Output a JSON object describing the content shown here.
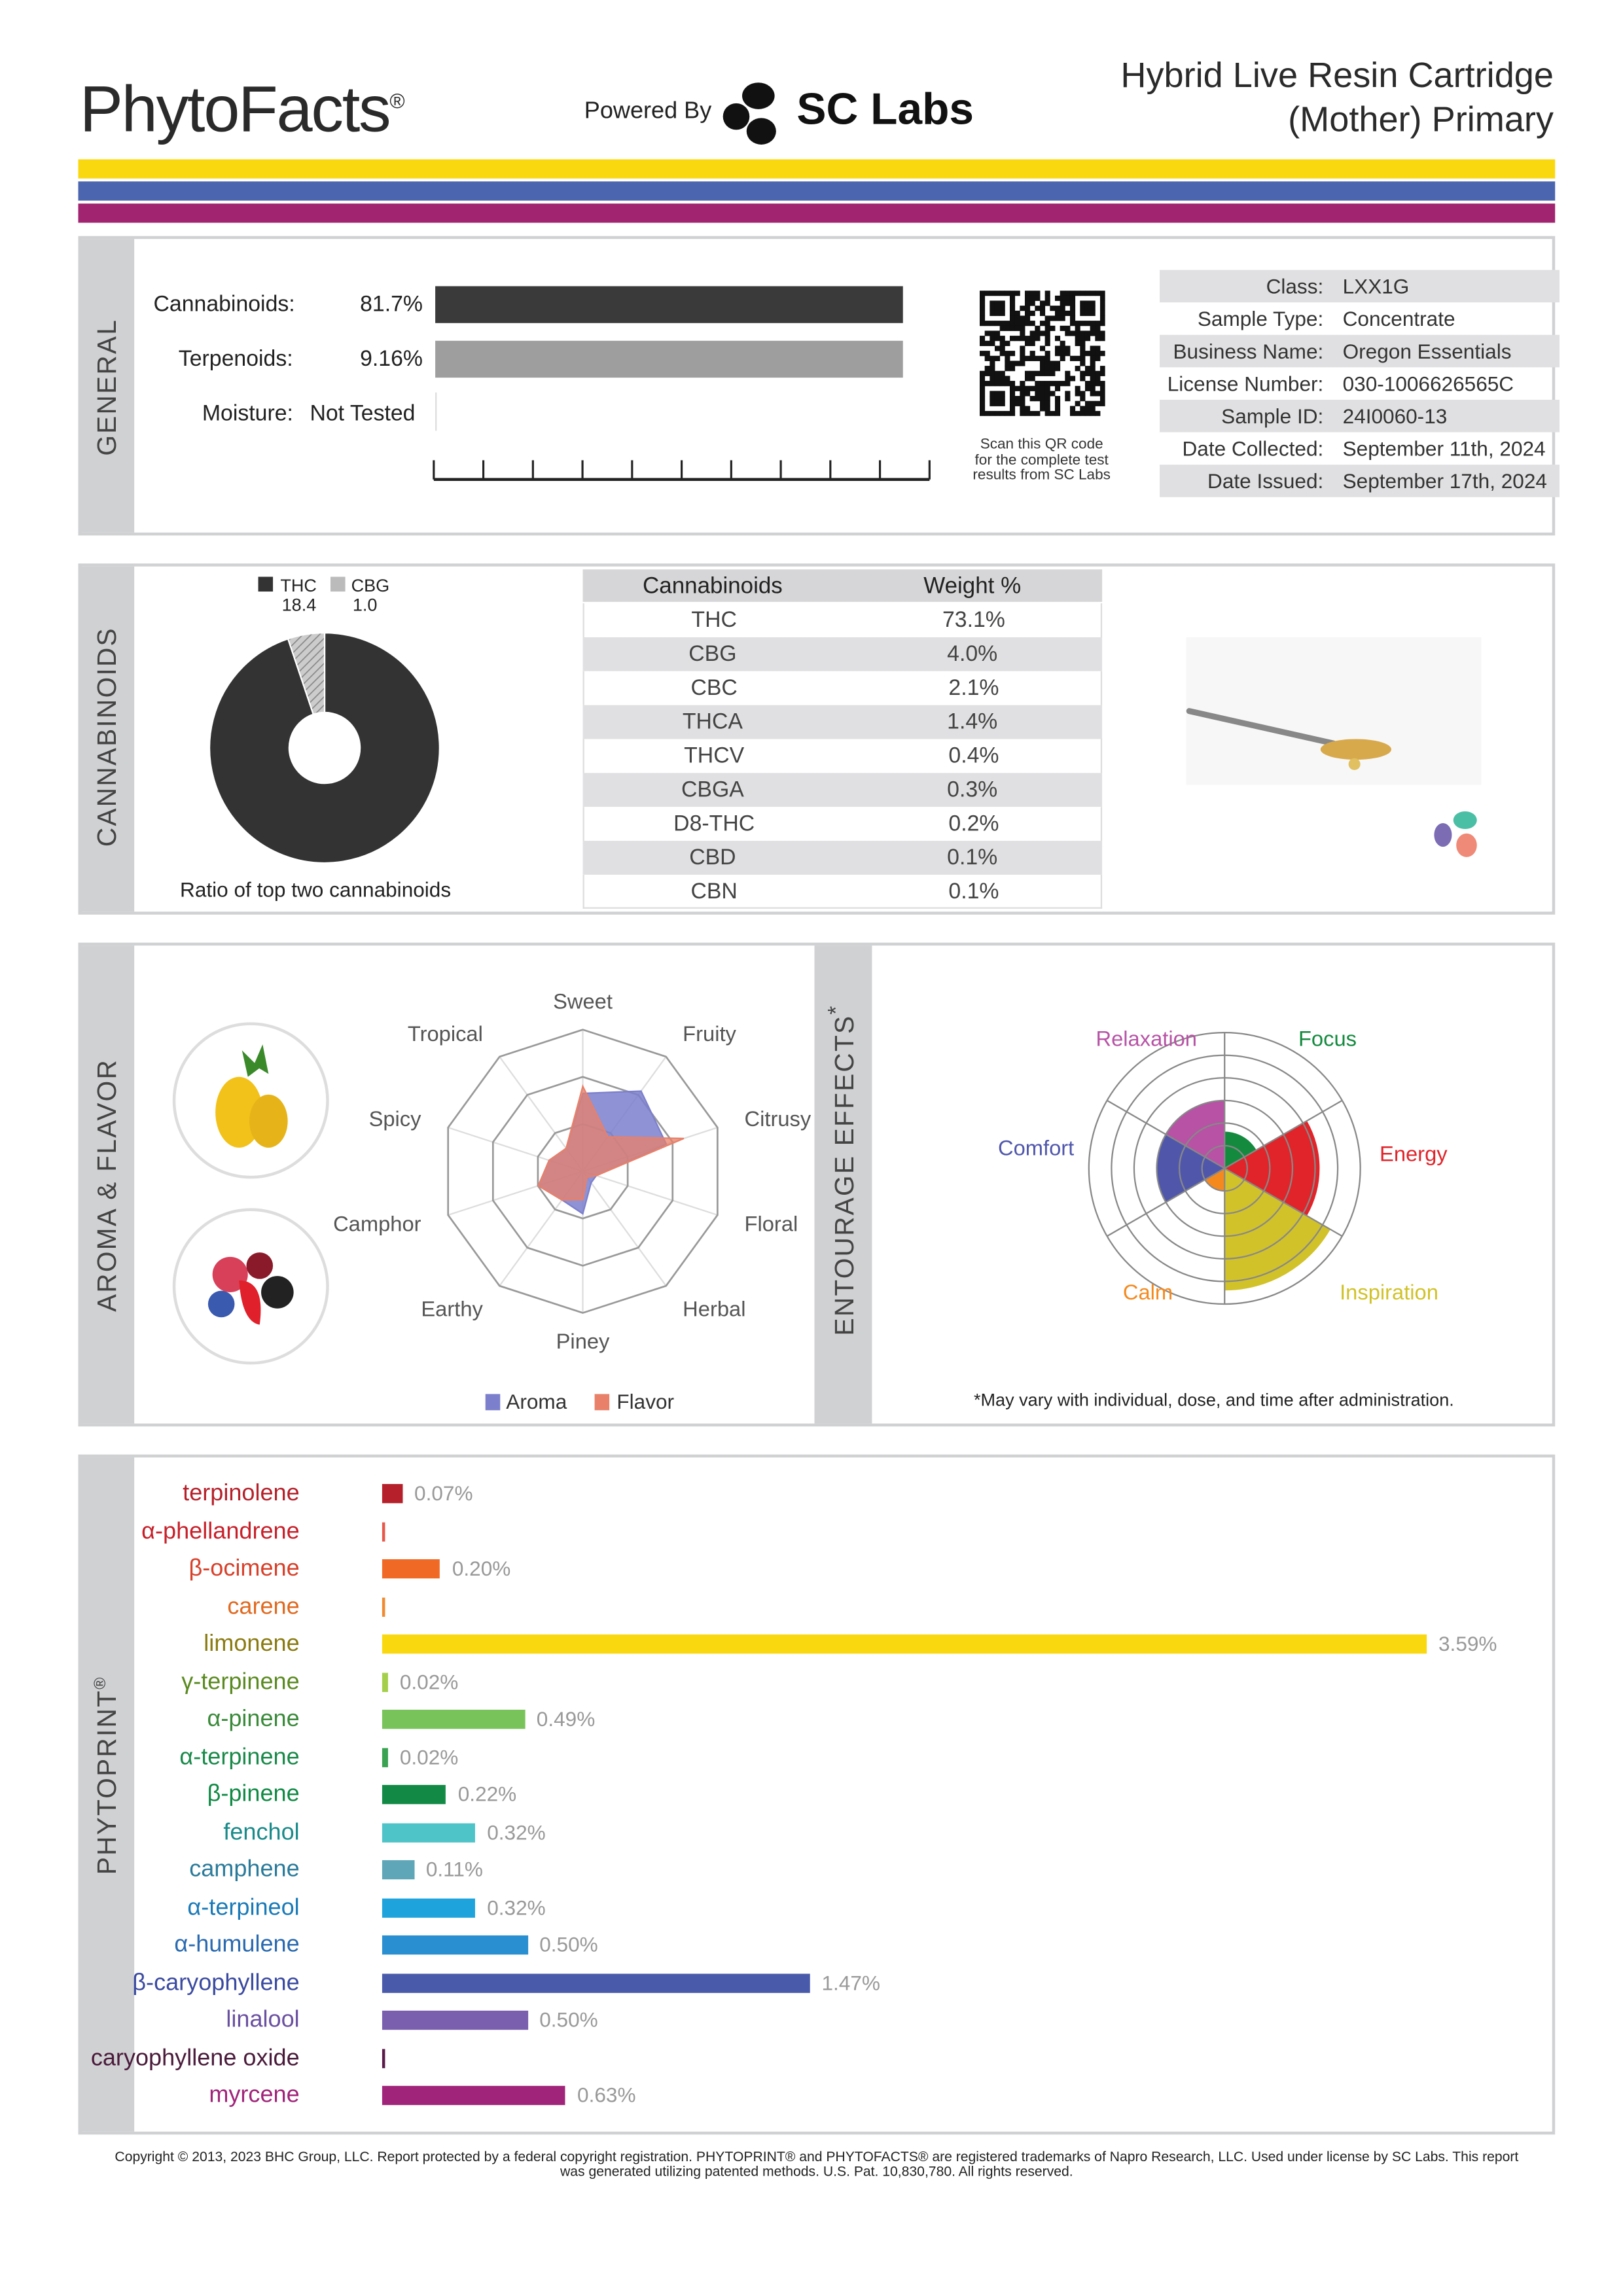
{
  "header": {
    "brand": "PhytoFacts",
    "brand_mark": "®",
    "powered_by": "Powered By",
    "lab_logo": "SC Labs",
    "title_line1": "Hybrid Live Resin Cartridge",
    "title_line2": "(Mother) Primary"
  },
  "stripes": [
    "#fad810",
    "#4b65ae",
    "#a0246f"
  ],
  "general": {
    "section": "GENERAL",
    "cannabinoids_label": "Cannabinoids:",
    "cannabinoids_value": "81.7%",
    "cannabinoids_pct": 81.7,
    "terpenoids_label": "Terpenoids:",
    "terpenoids_value": "9.16%",
    "terpenoids_pct": 9.16,
    "moisture_label": "Moisture:",
    "moisture_value": "Not Tested",
    "qr_caption": [
      "Scan this QR code",
      "for the complete test",
      "results from SC Labs"
    ],
    "info": [
      {
        "k": "Class:",
        "v": "LXX1G"
      },
      {
        "k": "Sample Type:",
        "v": "Concentrate"
      },
      {
        "k": "Business Name:",
        "v": "Oregon Essentials"
      },
      {
        "k": "License Number:",
        "v": "030-1006626565C"
      },
      {
        "k": "Sample ID:",
        "v": "24I0060-13"
      },
      {
        "k": "Date Collected:",
        "v": "September 11th, 2024"
      },
      {
        "k": "Date Issued:",
        "v": "September 17th, 2024"
      }
    ]
  },
  "cannabinoids": {
    "section": "CANNABINOIDS",
    "pie": {
      "type": "pie",
      "legend": [
        {
          "name": "THC",
          "value": "18.4",
          "color": "#333333"
        },
        {
          "name": "CBG",
          "value": "1.0",
          "color": "#bbbbbb"
        }
      ],
      "caption": "Ratio of top two cannabinoids"
    },
    "table": {
      "headers": [
        "Cannabinoids",
        "Weight %"
      ],
      "rows": [
        [
          "THC",
          "73.1%"
        ],
        [
          "CBG",
          "4.0%"
        ],
        [
          "CBC",
          "2.1%"
        ],
        [
          "THCA",
          "1.4%"
        ],
        [
          "THCV",
          "0.4%"
        ],
        [
          "CBGA",
          "0.3%"
        ],
        [
          "D8-THC",
          "0.2%"
        ],
        [
          "CBD",
          "0.1%"
        ],
        [
          "CBN",
          "0.1%"
        ]
      ]
    }
  },
  "aroma": {
    "section": "AROMA & FLAVOR",
    "chart_data": {
      "type": "radar",
      "axes": [
        "Sweet",
        "Fruity",
        "Citrusy",
        "Floral",
        "Herbal",
        "Piney",
        "Earthy",
        "Camphor",
        "Spicy",
        "Tropical"
      ],
      "range": [
        0,
        1
      ],
      "series": [
        {
          "name": "Aroma",
          "color": "#7b7fcc",
          "values": [
            0.55,
            0.7,
            0.62,
            0.1,
            0.1,
            0.3,
            0.25,
            0.33,
            0.25,
            0.2
          ]
        },
        {
          "name": "Flavor",
          "color": "#e8806a",
          "values": [
            0.6,
            0.3,
            0.75,
            0.1,
            0.05,
            0.2,
            0.25,
            0.33,
            0.25,
            0.2
          ]
        }
      ]
    }
  },
  "entourage": {
    "section": "ENTOURAGE EFFECTS",
    "mark": "*",
    "note": "*May vary with individual, dose, and time after administration.",
    "chart_data": {
      "type": "polar-area",
      "range": [
        0,
        1
      ],
      "sectors": [
        {
          "name": "Focus",
          "color": "#138a3e",
          "value": 0.27
        },
        {
          "name": "Energy",
          "color": "#e0242a",
          "value": 0.7
        },
        {
          "name": "Inspiration",
          "color": "#d1c22a",
          "value": 0.9
        },
        {
          "name": "Calm",
          "color": "#f5891e",
          "value": 0.17
        },
        {
          "name": "Comfort",
          "color": "#5057ab",
          "value": 0.5
        },
        {
          "name": "Relaxation",
          "color": "#b752a5",
          "value": 0.5
        }
      ]
    }
  },
  "phytoprint": {
    "section": "PHYTOPRINT",
    "mark": "®",
    "chart_data": {
      "type": "bar",
      "orientation": "horizontal",
      "unit": "%",
      "items": [
        {
          "name": "terpinolene",
          "value": 0.07,
          "label": "0.07%",
          "color": "#b5202a",
          "text": "#b5202a"
        },
        {
          "name": "α-phellandrene",
          "value": null,
          "label": "",
          "color": "#e8584a",
          "text": "#c8202a"
        },
        {
          "name": "β-ocimene",
          "value": 0.2,
          "label": "0.20%",
          "color": "#f06a25",
          "text": "#d8402a"
        },
        {
          "name": "carene",
          "value": null,
          "label": "",
          "color": "#f08a30",
          "text": "#e06a20"
        },
        {
          "name": "limonene",
          "value": 3.59,
          "label": "3.59%",
          "color": "#fad810",
          "text": "#8a7a10"
        },
        {
          "name": "γ-terpinene",
          "value": 0.02,
          "label": "0.02%",
          "color": "#a5cf4a",
          "text": "#5a8a20"
        },
        {
          "name": "α-pinene",
          "value": 0.49,
          "label": "0.49%",
          "color": "#78c35a",
          "text": "#3a8a3a"
        },
        {
          "name": "α-terpinene",
          "value": 0.02,
          "label": "0.02%",
          "color": "#3aa352",
          "text": "#1a8a4a"
        },
        {
          "name": "β-pinene",
          "value": 0.22,
          "label": "0.22%",
          "color": "#128a45",
          "text": "#108a45"
        },
        {
          "name": "fenchol",
          "value": 0.32,
          "label": "0.32%",
          "color": "#4fc4c8",
          "text": "#1a8a8a"
        },
        {
          "name": "camphene",
          "value": 0.11,
          "label": "0.11%",
          "color": "#5ea6b8",
          "text": "#2a7a9a"
        },
        {
          "name": "α-terpineol",
          "value": 0.32,
          "label": "0.32%",
          "color": "#1fa3dc",
          "text": "#1a7ab8"
        },
        {
          "name": "α-humulene",
          "value": 0.5,
          "label": "0.50%",
          "color": "#2a8fd0",
          "text": "#2a6ab0"
        },
        {
          "name": "β-caryophyllene",
          "value": 1.47,
          "label": "1.47%",
          "color": "#4a5aaa",
          "text": "#3a4aa0"
        },
        {
          "name": "linalool",
          "value": 0.5,
          "label": "0.50%",
          "color": "#7a5fae",
          "text": "#6a50a0"
        },
        {
          "name": "caryophyllene oxide",
          "value": null,
          "label": "",
          "color": "#5a1a4a",
          "text": "#4a1a3a"
        },
        {
          "name": "myrcene",
          "value": 0.63,
          "label": "0.63%",
          "color": "#a0247a",
          "text": "#a0247a"
        }
      ]
    }
  },
  "footer": {
    "line1": "Copyright © 2013, 2023 BHC Group, LLC. Report protected by a federal copyright registration. PHYTOPRINT® and PHYTOFACTS® are registered trademarks of Napro Research, LLC. Used under license by SC Labs. This report",
    "line2": "was generated utilizing patented methods. U.S. Pat. 10,830,780. All rights reserved."
  }
}
